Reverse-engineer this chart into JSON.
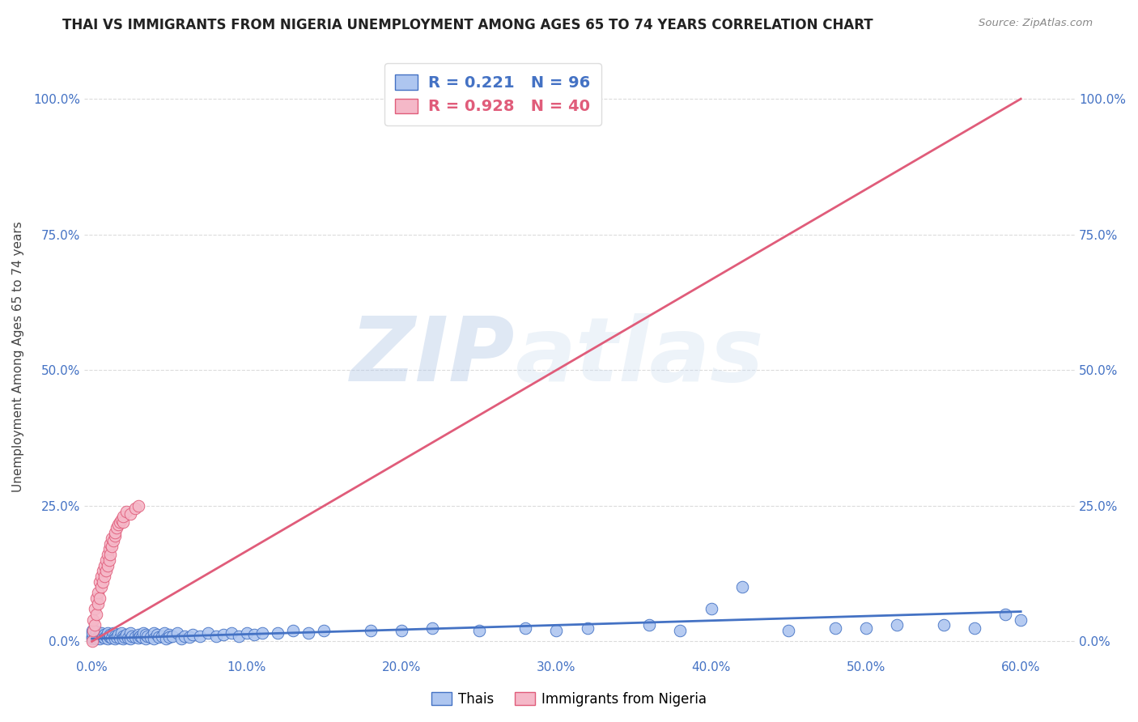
{
  "title": "THAI VS IMMIGRANTS FROM NIGERIA UNEMPLOYMENT AMONG AGES 65 TO 74 YEARS CORRELATION CHART",
  "source": "Source: ZipAtlas.com",
  "xlabel_ticks": [
    "0.0%",
    "10.0%",
    "20.0%",
    "30.0%",
    "40.0%",
    "50.0%",
    "60.0%"
  ],
  "xlabel_vals": [
    0.0,
    0.1,
    0.2,
    0.3,
    0.4,
    0.5,
    0.6
  ],
  "ylabel_ticks": [
    "0.0%",
    "25.0%",
    "50.0%",
    "75.0%",
    "100.0%"
  ],
  "ylabel_vals": [
    0.0,
    0.25,
    0.5,
    0.75,
    1.0
  ],
  "ylabel_label": "Unemployment Among Ages 65 to 74 years",
  "xlim": [
    -0.005,
    0.635
  ],
  "ylim": [
    -0.03,
    1.08
  ],
  "thai_color": "#aec6f0",
  "thai_line_color": "#4472c4",
  "nigeria_color": "#f5b8c8",
  "nigeria_line_color": "#e05c7a",
  "grid_color": "#cccccc",
  "background_color": "#ffffff",
  "watermark_zip": "ZIP",
  "watermark_atlas": "atlas",
  "legend_label_thai": "Thais",
  "legend_label_nigeria": "Immigrants from Nigeria",
  "thai_R": 0.221,
  "thai_N": 96,
  "nigeria_R": 0.928,
  "nigeria_N": 40,
  "thai_line_x": [
    0.0,
    0.6
  ],
  "thai_line_y": [
    0.005,
    0.055
  ],
  "nigeria_line_x": [
    0.0,
    0.6
  ],
  "nigeria_line_y": [
    0.0,
    1.0
  ],
  "thai_scatter_x": [
    0.0,
    0.0,
    0.0,
    0.0,
    0.0,
    0.002,
    0.003,
    0.003,
    0.004,
    0.005,
    0.005,
    0.006,
    0.007,
    0.007,
    0.008,
    0.008,
    0.009,
    0.01,
    0.01,
    0.01,
    0.011,
    0.012,
    0.012,
    0.013,
    0.014,
    0.015,
    0.015,
    0.016,
    0.017,
    0.018,
    0.019,
    0.02,
    0.02,
    0.021,
    0.022,
    0.023,
    0.025,
    0.025,
    0.026,
    0.028,
    0.03,
    0.03,
    0.031,
    0.032,
    0.033,
    0.035,
    0.035,
    0.036,
    0.038,
    0.04,
    0.04,
    0.042,
    0.043,
    0.045,
    0.047,
    0.048,
    0.05,
    0.05,
    0.052,
    0.055,
    0.058,
    0.06,
    0.063,
    0.065,
    0.07,
    0.075,
    0.08,
    0.085,
    0.09,
    0.095,
    0.1,
    0.105,
    0.11,
    0.12,
    0.13,
    0.14,
    0.15,
    0.18,
    0.2,
    0.22,
    0.25,
    0.28,
    0.3,
    0.32,
    0.36,
    0.38,
    0.4,
    0.42,
    0.45,
    0.48,
    0.5,
    0.52,
    0.55,
    0.57,
    0.59,
    0.6
  ],
  "thai_scatter_y": [
    0.02,
    0.01,
    0.005,
    0.008,
    0.015,
    0.01,
    0.005,
    0.018,
    0.008,
    0.012,
    0.005,
    0.015,
    0.01,
    0.008,
    0.012,
    0.006,
    0.01,
    0.008,
    0.015,
    0.005,
    0.01,
    0.008,
    0.012,
    0.006,
    0.015,
    0.01,
    0.005,
    0.008,
    0.012,
    0.006,
    0.015,
    0.01,
    0.005,
    0.008,
    0.012,
    0.006,
    0.015,
    0.005,
    0.01,
    0.008,
    0.012,
    0.006,
    0.01,
    0.008,
    0.015,
    0.005,
    0.012,
    0.01,
    0.008,
    0.015,
    0.005,
    0.012,
    0.008,
    0.01,
    0.015,
    0.005,
    0.012,
    0.008,
    0.01,
    0.015,
    0.005,
    0.01,
    0.008,
    0.012,
    0.01,
    0.015,
    0.01,
    0.012,
    0.015,
    0.01,
    0.015,
    0.012,
    0.015,
    0.015,
    0.02,
    0.015,
    0.02,
    0.02,
    0.02,
    0.025,
    0.02,
    0.025,
    0.02,
    0.025,
    0.03,
    0.02,
    0.06,
    0.1,
    0.02,
    0.025,
    0.025,
    0.03,
    0.03,
    0.025,
    0.05,
    0.04
  ],
  "nigeria_scatter_x": [
    0.0,
    0.001,
    0.001,
    0.002,
    0.002,
    0.003,
    0.003,
    0.004,
    0.004,
    0.005,
    0.005,
    0.006,
    0.006,
    0.007,
    0.007,
    0.008,
    0.008,
    0.009,
    0.009,
    0.01,
    0.01,
    0.011,
    0.011,
    0.012,
    0.012,
    0.013,
    0.013,
    0.014,
    0.015,
    0.015,
    0.016,
    0.017,
    0.018,
    0.019,
    0.02,
    0.02,
    0.022,
    0.025,
    0.028,
    0.03
  ],
  "nigeria_scatter_y": [
    0.0,
    0.02,
    0.04,
    0.03,
    0.06,
    0.05,
    0.08,
    0.07,
    0.09,
    0.08,
    0.11,
    0.1,
    0.12,
    0.11,
    0.13,
    0.12,
    0.14,
    0.13,
    0.15,
    0.14,
    0.16,
    0.15,
    0.17,
    0.16,
    0.18,
    0.175,
    0.19,
    0.185,
    0.195,
    0.2,
    0.21,
    0.215,
    0.22,
    0.225,
    0.22,
    0.23,
    0.24,
    0.235,
    0.245,
    0.25
  ]
}
